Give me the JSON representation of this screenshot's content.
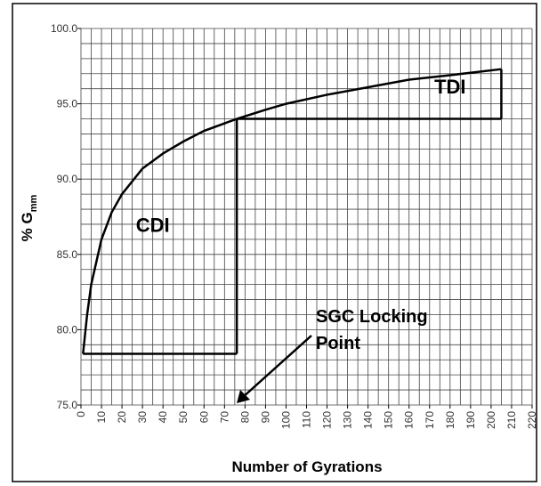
{
  "chart_data": {
    "type": "line",
    "xlabel": "Number of Gyrations",
    "ylabel": "% G",
    "ylabel_sub": "mm",
    "x": [
      1,
      3,
      5,
      10,
      15,
      20,
      30,
      40,
      50,
      60,
      76,
      90,
      100,
      120,
      140,
      160,
      180,
      205
    ],
    "values": [
      78.4,
      81,
      83,
      86,
      87.8,
      89,
      90.7,
      91.7,
      92.5,
      93.2,
      94.0,
      94.6,
      95,
      95.6,
      96.1,
      96.6,
      96.9,
      97.3
    ],
    "color": "#000000",
    "regions": [
      {
        "label": "CDI",
        "x": [
          1,
          76
        ],
        "y": [
          78.4,
          94
        ]
      },
      {
        "label": "TDI",
        "x": [
          76,
          205
        ],
        "y": [
          94,
          97.3
        ]
      }
    ],
    "annotation": [
      "SGC Locking",
      "Point"
    ],
    "xlim": [
      0,
      220
    ],
    "ylim": [
      75,
      100
    ],
    "xticks": [
      0,
      10,
      20,
      30,
      40,
      50,
      60,
      70,
      80,
      90,
      100,
      110,
      120,
      130,
      140,
      150,
      160,
      170,
      180,
      190,
      200,
      210,
      220
    ],
    "yticks": [
      {
        "value": 75,
        "label": "75.0"
      },
      {
        "value": 80,
        "label": "80.0"
      },
      {
        "value": 85,
        "label": "85.0"
      },
      {
        "value": 90,
        "label": "90.0"
      },
      {
        "value": 95,
        "label": "95.0"
      },
      {
        "value": 100,
        "label": "100.0"
      }
    ],
    "xgrid": [
      0,
      5,
      10,
      15,
      20,
      25,
      30,
      35,
      40,
      45,
      50,
      55,
      60,
      65,
      70,
      75,
      80,
      85,
      90,
      95,
      100,
      105,
      110,
      115,
      120,
      125,
      130,
      135,
      140,
      145,
      150,
      155,
      160,
      165,
      170,
      175,
      180,
      185,
      190,
      195,
      200,
      205,
      210,
      215,
      220
    ],
    "ygrid": [
      75,
      76,
      77,
      78,
      79,
      80,
      81,
      82,
      83,
      84,
      85,
      86,
      87,
      88,
      89,
      90,
      91,
      92,
      93,
      94,
      95,
      96,
      97,
      98,
      99,
      100
    ],
    "grid": true
  }
}
